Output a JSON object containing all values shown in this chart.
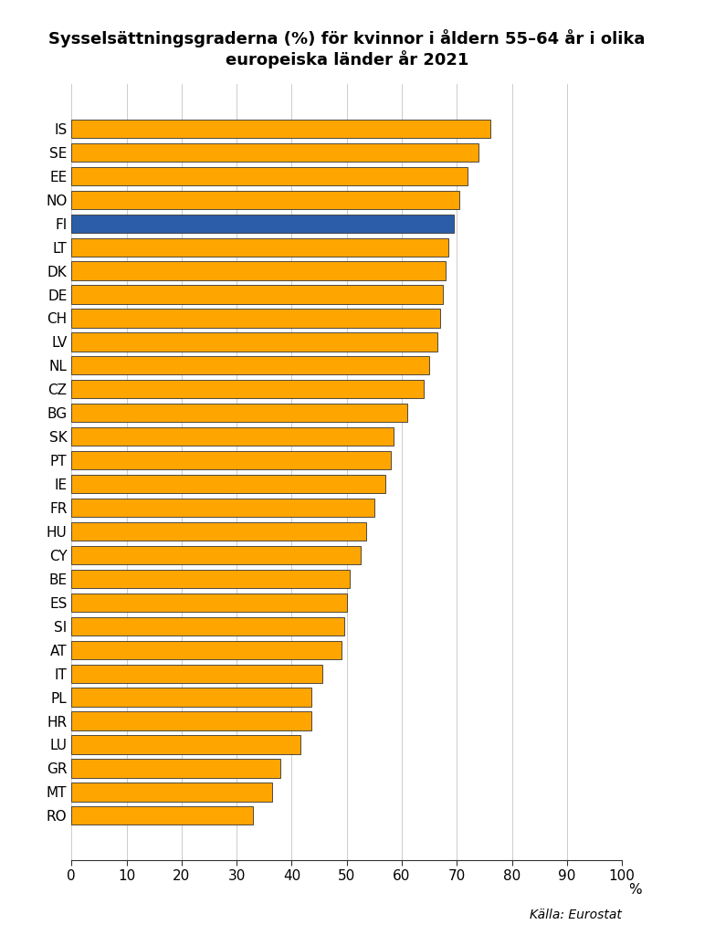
{
  "title": "Sysselsättningsgraderna (%) för kvinnor i åldern 55–64 år i olika\neuropeiska länder år 2021",
  "source": "Källa: Eurostat",
  "categories": [
    "IS",
    "SE",
    "EE",
    "NO",
    "FI",
    "LT",
    "DK",
    "DE",
    "CH",
    "LV",
    "NL",
    "CZ",
    "BG",
    "SK",
    "PT",
    "IE",
    "FR",
    "HU",
    "CY",
    "BE",
    "ES",
    "SI",
    "AT",
    "IT",
    "PL",
    "HR",
    "LU",
    "GR",
    "MT",
    "RO"
  ],
  "values": [
    76.0,
    74.0,
    72.0,
    70.5,
    69.5,
    68.5,
    68.0,
    67.5,
    67.0,
    66.5,
    65.0,
    64.0,
    61.0,
    58.5,
    58.0,
    57.0,
    55.0,
    53.5,
    52.5,
    50.5,
    50.0,
    49.5,
    49.0,
    45.5,
    43.5,
    43.5,
    41.5,
    38.0,
    36.5,
    33.0
  ],
  "highlight_country": "FI",
  "bar_color_default": "#FFA500",
  "bar_color_highlight": "#2B5EA7",
  "bar_edge_color": "#333333",
  "background_color": "#FFFFFF",
  "xlim": [
    0,
    100
  ],
  "xticks": [
    0,
    10,
    20,
    30,
    40,
    50,
    60,
    70,
    80,
    90,
    100
  ],
  "title_fontsize": 13,
  "tick_fontsize": 11,
  "label_fontsize": 11,
  "source_fontsize": 10
}
